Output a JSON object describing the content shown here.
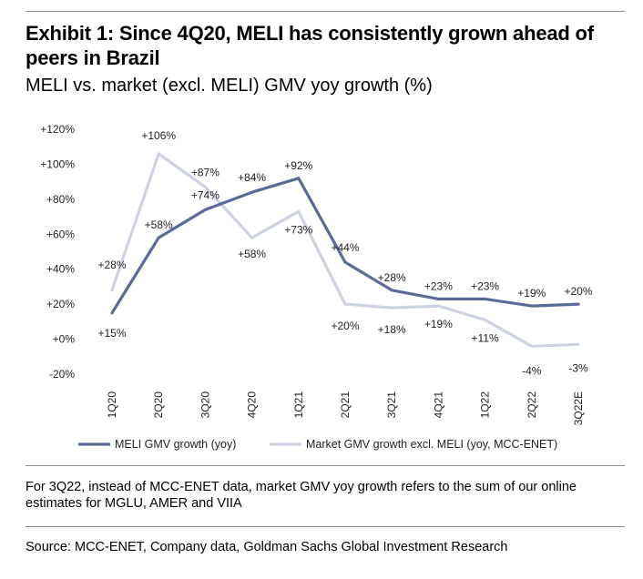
{
  "header": {
    "title": "Exhibit 1: Since 4Q20, MELI has consistently grown ahead of peers in Brazil",
    "subtitle": "MELI vs. market (excl. MELI) GMV yoy growth (%)"
  },
  "chart_data": {
    "type": "line",
    "title": "MELI vs. market (excl. MELI) GMV yoy growth (%)",
    "xlabel": "",
    "ylabel": "",
    "ylim": [
      -20,
      120
    ],
    "yticks": [
      -20,
      0,
      20,
      40,
      60,
      80,
      100,
      120
    ],
    "ytick_labels": [
      "-20%",
      "+0%",
      "+20%",
      "+40%",
      "+60%",
      "+80%",
      "+100%",
      "+120%"
    ],
    "categories": [
      "1Q20",
      "2Q20",
      "3Q20",
      "4Q20",
      "1Q21",
      "2Q21",
      "3Q21",
      "4Q21",
      "1Q22",
      "2Q22",
      "3Q22E"
    ],
    "legend_position": "bottom",
    "grid": false,
    "series": [
      {
        "name": "MELI GMV growth (yoy)",
        "color": "#5b6b99",
        "values": [
          15,
          58,
          74,
          84,
          92,
          44,
          28,
          23,
          23,
          19,
          20
        ],
        "labels": [
          "+15%",
          "+58%",
          "+74%",
          "+84%",
          "+92%",
          "+44%",
          "+28%",
          "+23%",
          "+23%",
          "+19%",
          "+20%"
        ]
      },
      {
        "name": "Market GMV growth excl. MELI (yoy, MCC-ENET)",
        "color": "#cdd3e2",
        "values": [
          28,
          106,
          87,
          58,
          73,
          20,
          18,
          19,
          11,
          -4,
          -3
        ],
        "labels": [
          "+28%",
          "+106%",
          "+87%",
          "+58%",
          "+73%",
          "+20%",
          "+18%",
          "+19%",
          "+11%",
          "-4%",
          "-3%"
        ]
      }
    ]
  },
  "footnote": "For 3Q22, instead of MCC-ENET data, market GMV yoy growth refers to the sum of our online estimates for MGLU, AMER and VIIA",
  "source": "Source: MCC-ENET, Company data, Goldman Sachs Global Investment Research"
}
